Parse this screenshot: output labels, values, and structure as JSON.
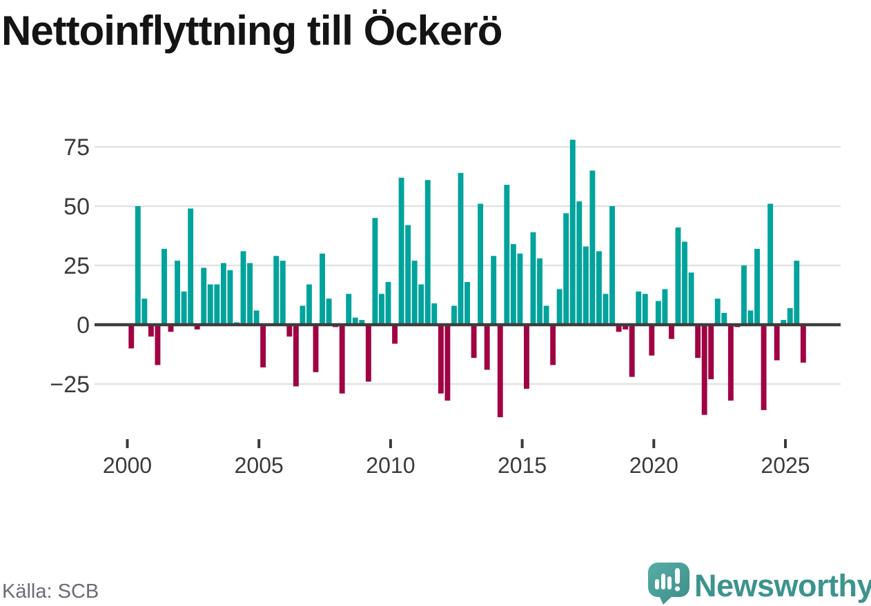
{
  "header": {
    "title": "Nettoinflyttning till Öckerö"
  },
  "footer": {
    "source_label": "Källa: SCB"
  },
  "brand": {
    "name": "Newsworthy",
    "text_color": "#3d938e",
    "bubble_color_top": "#57aea7",
    "bubble_color_bottom": "#3c8d88"
  },
  "chart_data": {
    "type": "bar",
    "title": "Nettoinflyttning till Öckerö",
    "frequency": "quarterly",
    "start": "2000-Q1",
    "end": "2025-Q3",
    "xlabel": "",
    "ylabel": "",
    "ylim": [
      -45,
      80
    ],
    "grid": "horizontal",
    "legend": "none",
    "positive_color": "#00a39c",
    "negative_color": "#a00343",
    "zero_line_color": "#3d3d3d",
    "gridline_color": "#e2e2e2",
    "axis_text_color": "#3a3a3a",
    "y_ticks": [
      75,
      50,
      25,
      0,
      -25
    ],
    "y_tick_labels": [
      "75",
      "50",
      "25",
      "0",
      "−25"
    ],
    "x_ticks": [
      "2000",
      "2005",
      "2010",
      "2015",
      "2020",
      "2025"
    ],
    "values_by_year": {
      "2000": [
        -10,
        50,
        11,
        -5
      ],
      "2001": [
        -17,
        32,
        -3,
        27
      ],
      "2002": [
        14,
        49,
        -2,
        24
      ],
      "2003": [
        17,
        17,
        26,
        23
      ],
      "2004": [
        1,
        31,
        26,
        6
      ],
      "2005": [
        -18,
        0,
        29,
        27
      ],
      "2006": [
        -5,
        -26,
        8,
        17
      ],
      "2007": [
        -20,
        30,
        11,
        -1
      ],
      "2008": [
        -29,
        13,
        3,
        2
      ],
      "2009": [
        -24,
        45,
        13,
        18
      ],
      "2010": [
        -8,
        62,
        42,
        27
      ],
      "2011": [
        17,
        61,
        9,
        -29
      ],
      "2012": [
        -32,
        8,
        64,
        18
      ],
      "2013": [
        -14,
        51,
        -19,
        29
      ],
      "2014": [
        -39,
        59,
        34,
        30
      ],
      "2015": [
        -27,
        39,
        28,
        8
      ],
      "2016": [
        -17,
        15,
        47,
        78
      ],
      "2017": [
        52,
        33,
        65,
        31
      ],
      "2018": [
        13,
        50,
        -3,
        -2
      ],
      "2019": [
        -22,
        14,
        13,
        -13
      ],
      "2020": [
        10,
        15,
        -6,
        41
      ],
      "2021": [
        35,
        22,
        -14,
        -38
      ],
      "2022": [
        -23,
        11,
        5,
        -32
      ],
      "2023": [
        -1,
        25,
        6,
        32
      ],
      "2024": [
        -36,
        51,
        -15,
        2
      ],
      "2025": [
        7,
        27,
        -16
      ]
    }
  }
}
